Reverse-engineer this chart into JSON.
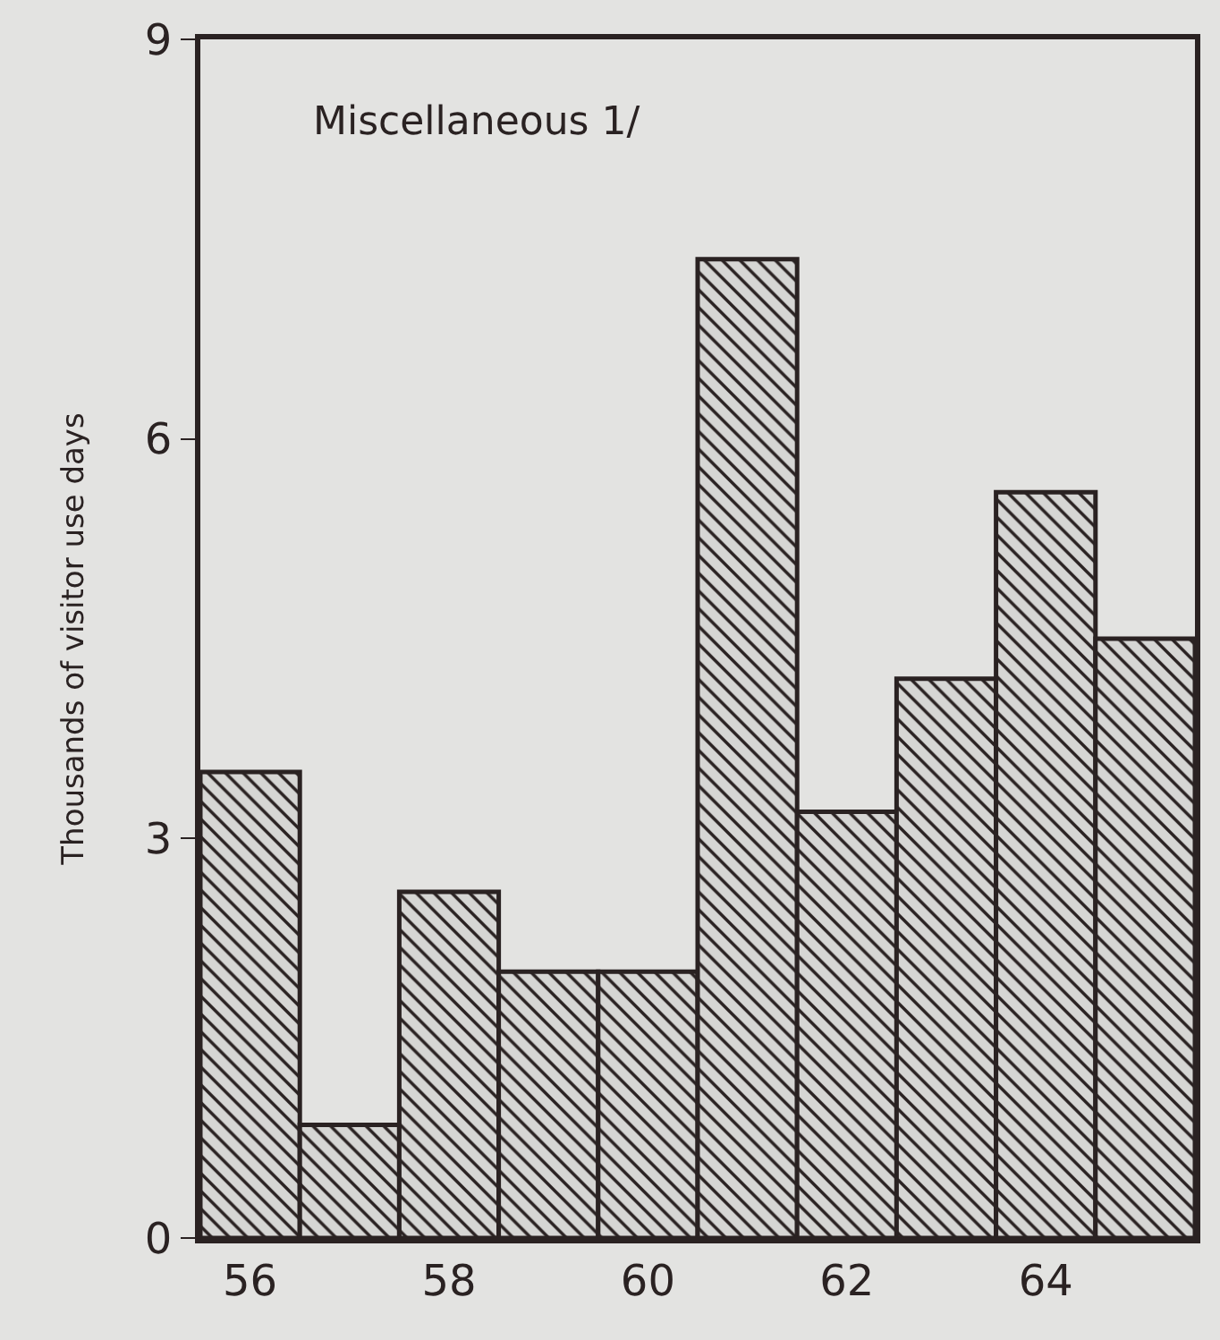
{
  "chart_data": {
    "type": "bar",
    "title": "Miscellaneous 1/",
    "ylabel": "Thousands of visitor use days",
    "x": [
      56,
      57,
      58,
      59,
      60,
      61,
      62,
      63,
      64,
      65
    ],
    "values": [
      3.5,
      0.85,
      2.6,
      2.0,
      2.0,
      7.35,
      3.2,
      4.2,
      5.6,
      4.5
    ],
    "color": "#2a2222",
    "xlim": [
      55.5,
      65.5
    ],
    "xticks": [
      56,
      58,
      60,
      62,
      64
    ],
    "ylim": [
      0,
      9
    ],
    "yticks": [
      0,
      3,
      6,
      9
    ],
    "grid": false,
    "legend": false
  }
}
